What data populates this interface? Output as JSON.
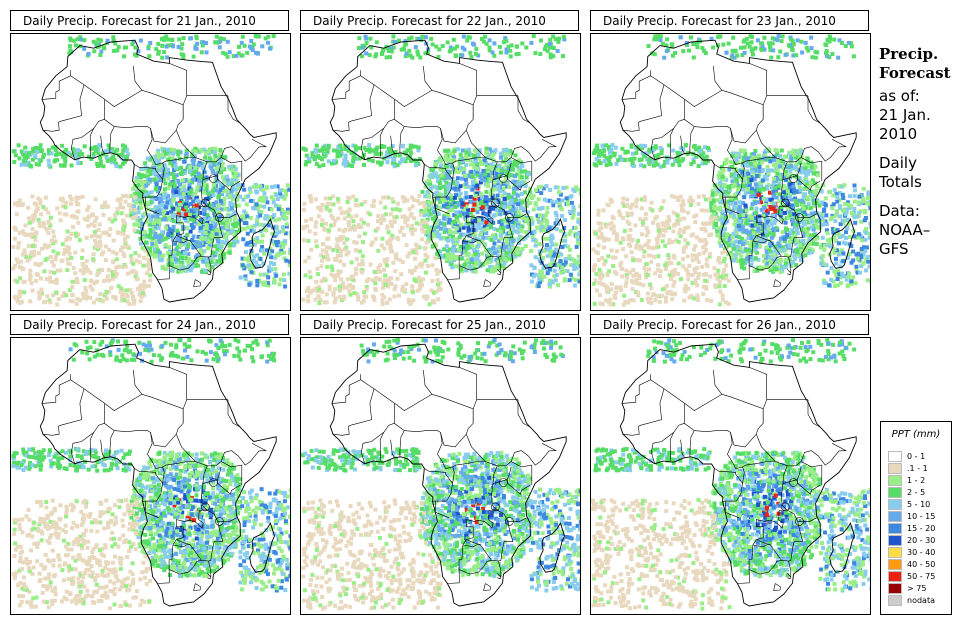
{
  "panels": [
    {
      "title": "Daily Precip. Forecast for  21 Jan., 2010",
      "day": 0
    },
    {
      "title": "Daily Precip. Forecast for  22 Jan., 2010",
      "day": 1
    },
    {
      "title": "Daily Precip. Forecast for  23 Jan., 2010",
      "day": 2
    },
    {
      "title": "Daily Precip. Forecast for  24 Jan., 2010",
      "day": 3
    },
    {
      "title": "Daily Precip. Forecast for  25 Jan., 2010",
      "day": 4
    },
    {
      "title": "Daily Precip. Forecast for  26 Jan., 2010",
      "day": 5
    }
  ],
  "side": {
    "heading1": "Precip.",
    "heading2": "Forecast",
    "asof1": "as of:",
    "asof2": "21 Jan.",
    "asof3": "2010",
    "daily1": "Daily",
    "daily2": "Totals",
    "data1": "Data:",
    "data2": "NOAA–",
    "data3": "GFS"
  },
  "legend": {
    "title": "PPT (mm)",
    "items": [
      {
        "label": "0 - 1",
        "color": "#ffffff"
      },
      {
        "label": ".1 - 1",
        "color": "#e8d8be"
      },
      {
        "label": "1 - 2",
        "color": "#99ee88"
      },
      {
        "label": "2 - 5",
        "color": "#55dd66"
      },
      {
        "label": "5 - 10",
        "color": "#88ccee"
      },
      {
        "label": "10 - 15",
        "color": "#66aaee"
      },
      {
        "label": "15 - 20",
        "color": "#3d88e0"
      },
      {
        "label": "20 - 30",
        "color": "#1f55cc"
      },
      {
        "label": "30 - 40",
        "color": "#ffdd44"
      },
      {
        "label": "40 - 50",
        "color": "#ff9911"
      },
      {
        "label": "50 - 75",
        "color": "#ee2211"
      },
      {
        "label": "> 75",
        "color": "#990000"
      },
      {
        "label": "nodata",
        "color": "#cccccc"
      }
    ]
  }
}
